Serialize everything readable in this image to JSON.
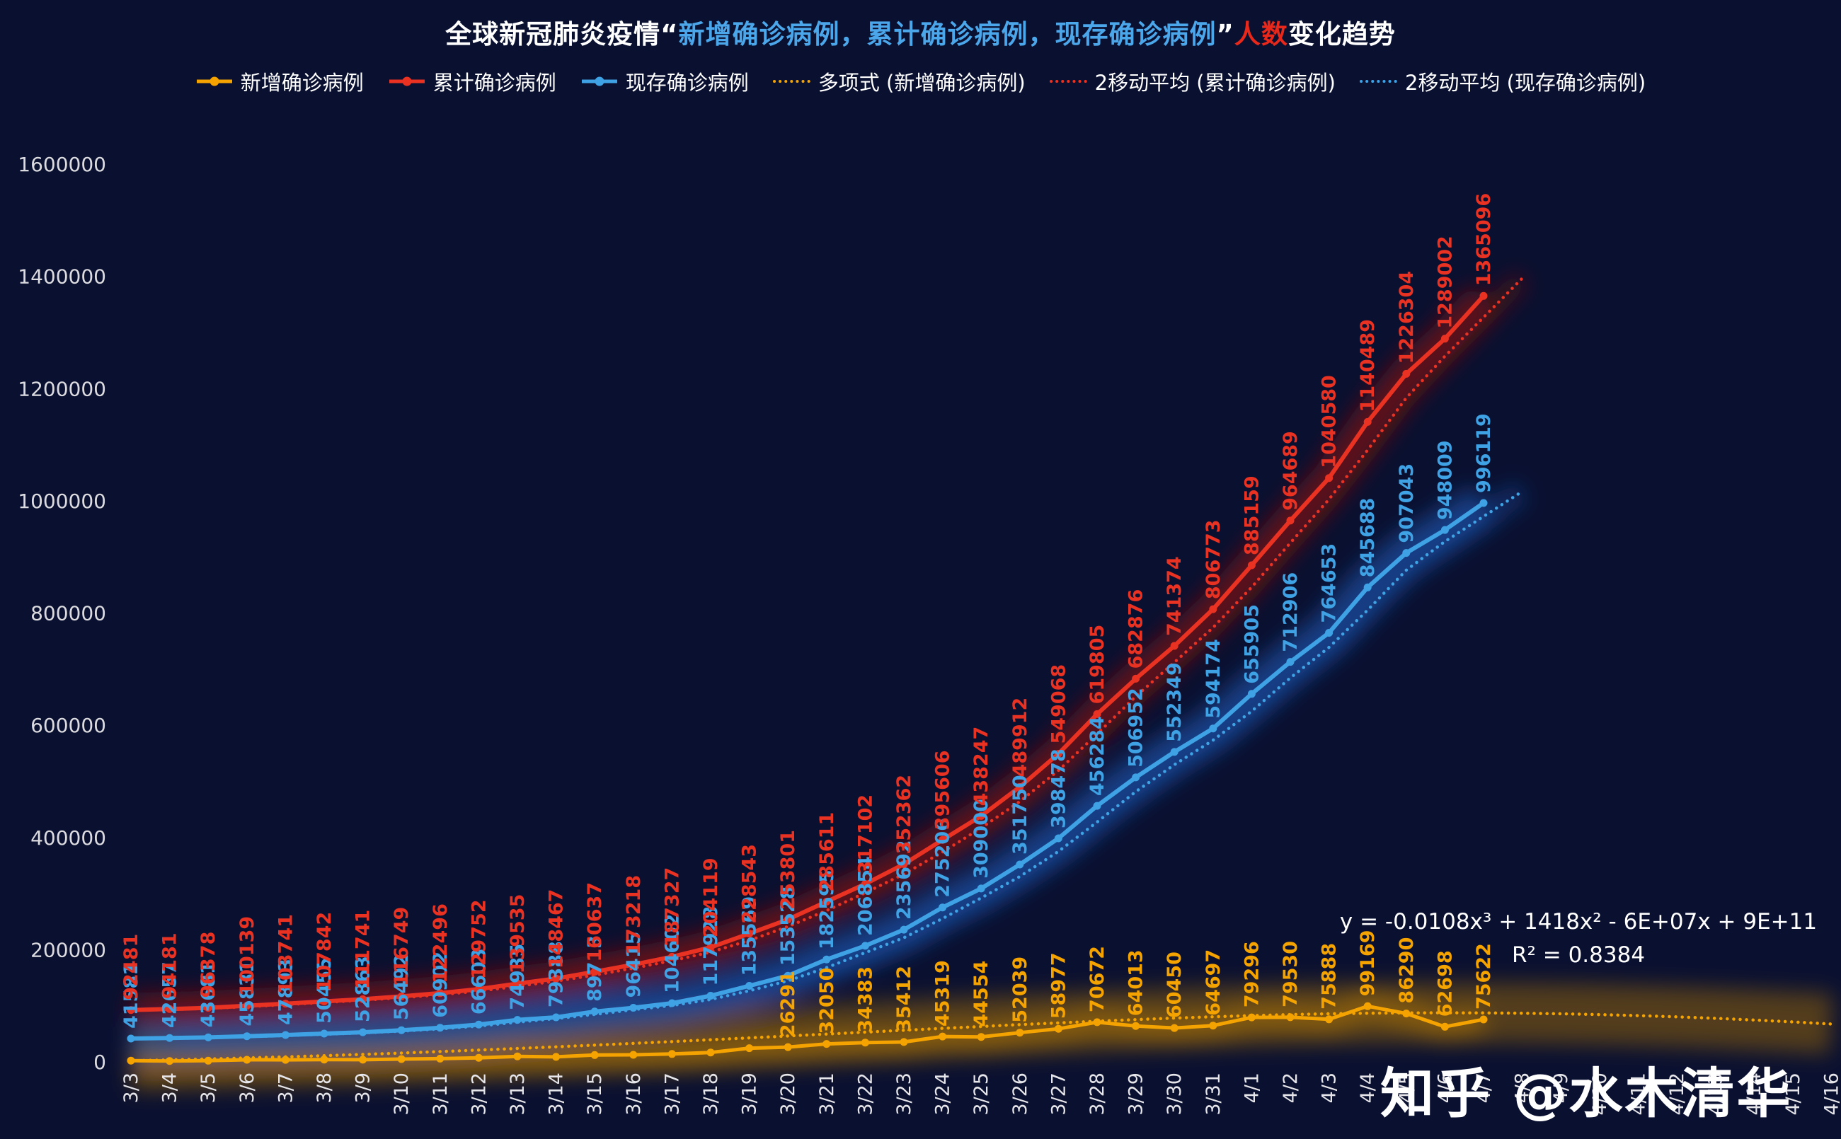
{
  "title": {
    "part1": "全球新冠肺炎疫情“",
    "part2": "新增确诊病例，累计确诊病例，现存确诊病例",
    "part3": "”",
    "part4": "人数",
    "part5": "变化趋势"
  },
  "legend": {
    "items": [
      {
        "label": "新增确诊病例",
        "color": "#F5A300",
        "style": "solid"
      },
      {
        "label": "累计确诊病例",
        "color": "#EA3223",
        "style": "solid"
      },
      {
        "label": "现存确诊病例",
        "color": "#3FA2E4",
        "style": "solid"
      },
      {
        "label": "多项式 (新增确诊病例)",
        "color": "#F5A300",
        "style": "dotted"
      },
      {
        "label": "2移动平均 (累计确诊病例)",
        "color": "#EA3223",
        "style": "dotted"
      },
      {
        "label": "2移动平均 (现存确诊病例)",
        "color": "#3FA2E4",
        "style": "dotted"
      }
    ]
  },
  "colors": {
    "background": "#0A1030",
    "new": "#F5A300",
    "cumulative": "#EA3223",
    "active": "#3FA2E4",
    "glow_new": "#B87A00",
    "glow_cumulative": "#7E120A",
    "glow_active": "#1C55AE",
    "axis_text": "#DCDCE0",
    "title_blue": "#4BA6EA",
    "title_red": "#E8281A"
  },
  "annotations": {
    "equation": "y = -0.0108x³ + 1418x² - 6E+07x + 9E+11",
    "r_squared": "R² = 0.8384"
  },
  "watermark": {
    "text": "知乎 @水木清华"
  },
  "chart_data": {
    "type": "line",
    "title": "全球新冠肺炎疫情“新增确诊病例，累计确诊病例，现存确诊病例”人数变化趋势",
    "xlabel": "",
    "ylabel": "",
    "ylim": [
      0,
      1600000
    ],
    "yticks": [
      0,
      200000,
      400000,
      600000,
      800000,
      1000000,
      1200000,
      1400000,
      1600000
    ],
    "grid": false,
    "legend_position": "top",
    "x_axis_dates": [
      "3/3",
      "3/4",
      "3/5",
      "3/6",
      "3/7",
      "3/8",
      "3/9",
      "3/10",
      "3/11",
      "3/12",
      "3/13",
      "3/14",
      "3/15",
      "3/16",
      "3/17",
      "3/18",
      "3/19",
      "3/20",
      "3/21",
      "3/22",
      "3/23",
      "3/24",
      "3/25",
      "3/26",
      "3/27",
      "3/28",
      "3/29",
      "3/30",
      "3/31",
      "4/1",
      "4/2",
      "4/3",
      "4/4",
      "4/5",
      "4/6",
      "4/7",
      "4/8",
      "4/9",
      "4/10",
      "4/11",
      "4/12",
      "4/13",
      "4/14",
      "4/15",
      "4/16"
    ],
    "series": [
      {
        "id": "new-cases",
        "name": "新增确诊病例",
        "color": "#F5A300",
        "labels_start_index": 17,
        "values": [
          2256,
          1700,
          2197,
          3761,
          3602,
          4101,
          3899,
          5008,
          5747,
          7256,
          9783,
          8932,
          12170,
          12581,
          14109,
          16792,
          24424,
          26291,
          32050,
          34383,
          35412,
          45319,
          44554,
          52039,
          58977,
          70672,
          64013,
          60450,
          64697,
          79296,
          79530,
          75888,
          99169,
          86290,
          62698,
          75622
        ]
      },
      {
        "id": "cumulative-cases",
        "name": "累计确诊病例",
        "color": "#EA3223",
        "labels_start_index": 0,
        "values": [
          92481,
          94181,
          96378,
          100139,
          103741,
          107842,
          111741,
          116749,
          122496,
          129752,
          139535,
          148467,
          160637,
          173218,
          187327,
          204119,
          228543,
          253801,
          285611,
          317102,
          352362,
          395606,
          438247,
          489912,
          549068,
          619805,
          682876,
          741374,
          806773,
          885159,
          964689,
          1040580,
          1140489,
          1226304,
          1289002,
          1365096
        ]
      },
      {
        "id": "active-cases",
        "name": "现存确诊病例",
        "color": "#3FA2E4",
        "labels_start_index": 0,
        "values": [
          41581,
          42657,
          43681,
          45831,
          47893,
          50455,
          52863,
          56492,
          60902,
          66603,
          74935,
          79388,
          89713,
          96415,
          104602,
          117928,
          135569,
          153528,
          182595,
          206854,
          235692,
          275206,
          309000,
          351750,
          398478,
          456284,
          506952,
          552349,
          594174,
          655905,
          712906,
          764653,
          845688,
          907043,
          948009,
          996119
        ]
      }
    ],
    "trendlines": [
      {
        "id": "poly-new-cases",
        "name": "多项式 (新增确诊病例)",
        "color": "#F5A300",
        "style": "dotted",
        "values": [
          2000,
          3500,
          5200,
          7000,
          9000,
          11100,
          13400,
          15800,
          18400,
          21100,
          23900,
          26800,
          29900,
          33000,
          36200,
          39500,
          42800,
          46200,
          49600,
          53000,
          56400,
          59800,
          63100,
          66400,
          69500,
          72500,
          75400,
          78000,
          80400,
          82500,
          84300,
          85700,
          86700,
          87300,
          87500,
          87300,
          86700,
          85700,
          84300,
          82500,
          80300,
          77700,
          74700,
          71300,
          67500
        ]
      },
      {
        "id": "ma2-cumulative",
        "name": "2移动平均 (累计确诊病例)",
        "color": "#EA3223",
        "style": "dotted",
        "source": "cumulative-cases",
        "window": 2
      },
      {
        "id": "ma2-active",
        "name": "2移动平均 (现存确诊病例)",
        "color": "#3FA2E4",
        "style": "dotted",
        "source": "active-cases",
        "window": 2
      }
    ]
  }
}
